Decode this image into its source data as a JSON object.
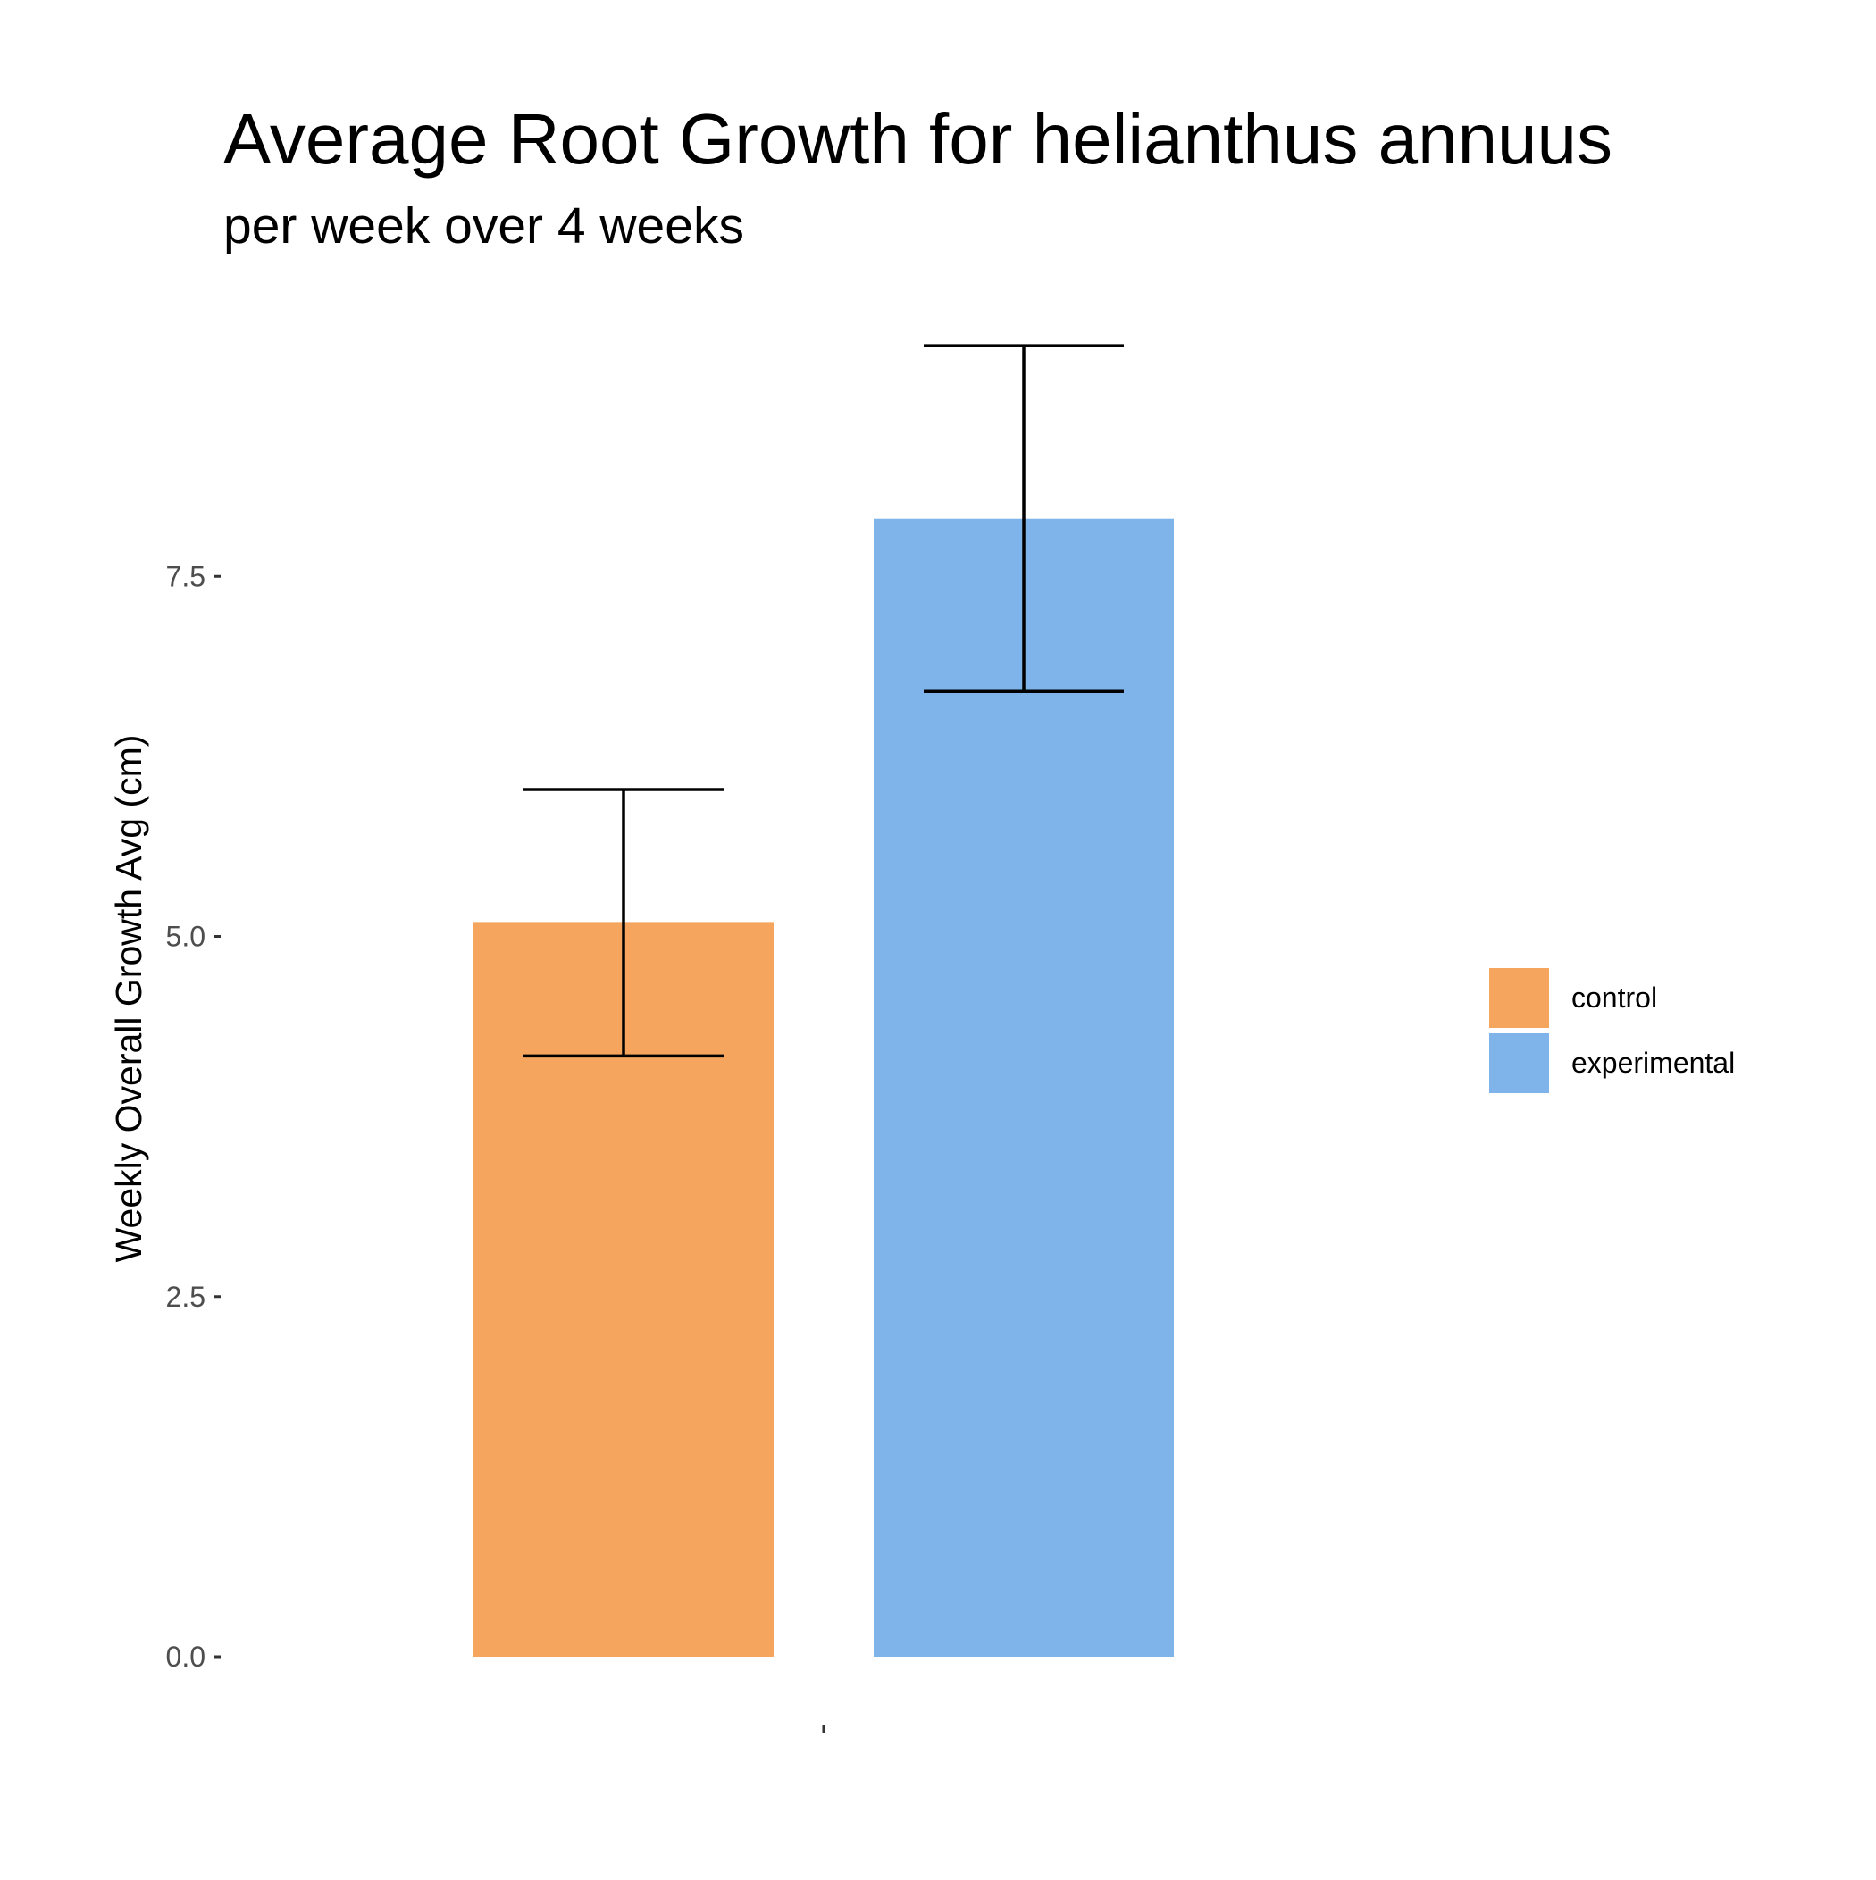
{
  "chart_data": {
    "type": "bar",
    "title": "Average Root Growth for helianthus annuus",
    "subtitle": "per week over 4 weeks",
    "xlabel": "",
    "ylabel": "Weekly Overall Growth Avg (cm)",
    "ylim": [
      0,
      10
    ],
    "yticks": [
      {
        "value": 0.0,
        "label": "0.0"
      },
      {
        "value": 2.5,
        "label": "2.5"
      },
      {
        "value": 5.0,
        "label": "5.0"
      },
      {
        "value": 7.5,
        "label": "7.5"
      }
    ],
    "categories": [
      ""
    ],
    "series": [
      {
        "name": "control",
        "values": [
          5.1
        ],
        "error_low": [
          4.17
        ],
        "error_high": [
          6.02
        ],
        "color": "#f5a55e"
      },
      {
        "name": "experimental",
        "values": [
          7.9
        ],
        "error_low": [
          6.7
        ],
        "error_high": [
          9.1
        ],
        "color": "#7fb4ea"
      }
    ],
    "grid": false,
    "legend": {
      "position": "right",
      "labels": [
        "control",
        "experimental"
      ]
    }
  }
}
